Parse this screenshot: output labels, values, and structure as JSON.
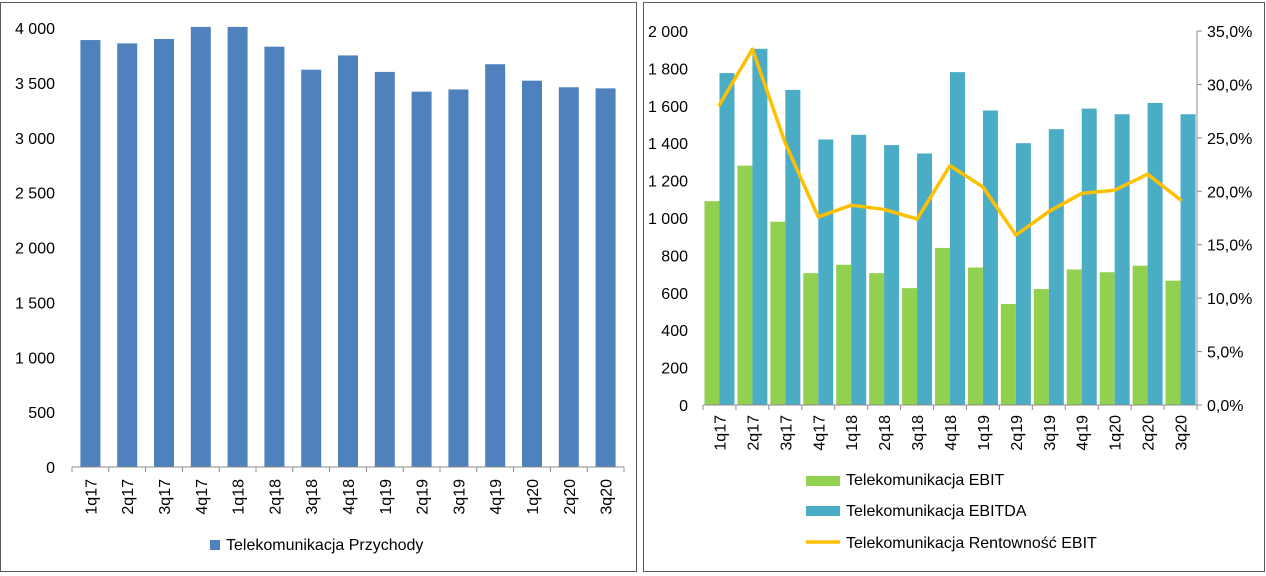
{
  "chart_data": [
    {
      "type": "bar",
      "title": "",
      "xlabel": "",
      "ylabel": "",
      "categories": [
        "1q17",
        "2q17",
        "3q17",
        "4q17",
        "1q18",
        "2q18",
        "3q18",
        "4q18",
        "1q19",
        "2q19",
        "3q19",
        "4q19",
        "1q20",
        "2q20",
        "3q20"
      ],
      "ylim": [
        0,
        4000
      ],
      "yticks": [
        "0",
        "500",
        "1 000",
        "1 500",
        "2 000",
        "2 500",
        "3 000",
        "3 500",
        "4 000"
      ],
      "grid": false,
      "legend_position": "bottom",
      "series": [
        {
          "name": "Telekomunikacja Przychody",
          "color": "#4f81bd",
          "values": [
            3890,
            3860,
            3900,
            4010,
            4010,
            3830,
            3620,
            3750,
            3600,
            3420,
            3440,
            3670,
            3520,
            3460,
            3450
          ]
        }
      ]
    },
    {
      "type": "bar",
      "title": "",
      "xlabel": "",
      "ylabel": "",
      "categories": [
        "1q17",
        "2q17",
        "3q17",
        "4q17",
        "1q18",
        "2q18",
        "3q18",
        "4q18",
        "1q19",
        "2q19",
        "3q19",
        "4q19",
        "1q20",
        "2q20",
        "3q20"
      ],
      "ylim": [
        0,
        2000
      ],
      "yticks": [
        "0",
        "200",
        "400",
        "600",
        "800",
        "1 000",
        "1 200",
        "1 400",
        "1 600",
        "1 800",
        "2 000"
      ],
      "y2lim": [
        0,
        35
      ],
      "y2ticks": [
        "0,0%",
        "5,0%",
        "10,0%",
        "15,0%",
        "20,0%",
        "25,0%",
        "30,0%",
        "35,0%"
      ],
      "grid": false,
      "legend_position": "bottom",
      "series": [
        {
          "name": "Telekomunikacja EBIT",
          "kind": "bar",
          "color": "#92d050",
          "values": [
            1090,
            1280,
            980,
            705,
            750,
            705,
            625,
            840,
            735,
            540,
            620,
            725,
            710,
            745,
            665
          ]
        },
        {
          "name": "Telekomunikacja EBITDA",
          "kind": "bar",
          "color": "#4bacc6",
          "values": [
            1775,
            1905,
            1685,
            1420,
            1445,
            1390,
            1345,
            1780,
            1575,
            1400,
            1475,
            1585,
            1555,
            1615,
            1555
          ]
        },
        {
          "name": "Telekomunikacja Rentowność EBIT",
          "kind": "line",
          "axis": "right",
          "color": "#ffc000",
          "values": [
            28.1,
            33.3,
            24.5,
            17.6,
            18.7,
            18.3,
            17.4,
            22.4,
            20.4,
            15.9,
            18.1,
            19.8,
            20.1,
            21.6,
            19.2
          ]
        }
      ]
    }
  ]
}
